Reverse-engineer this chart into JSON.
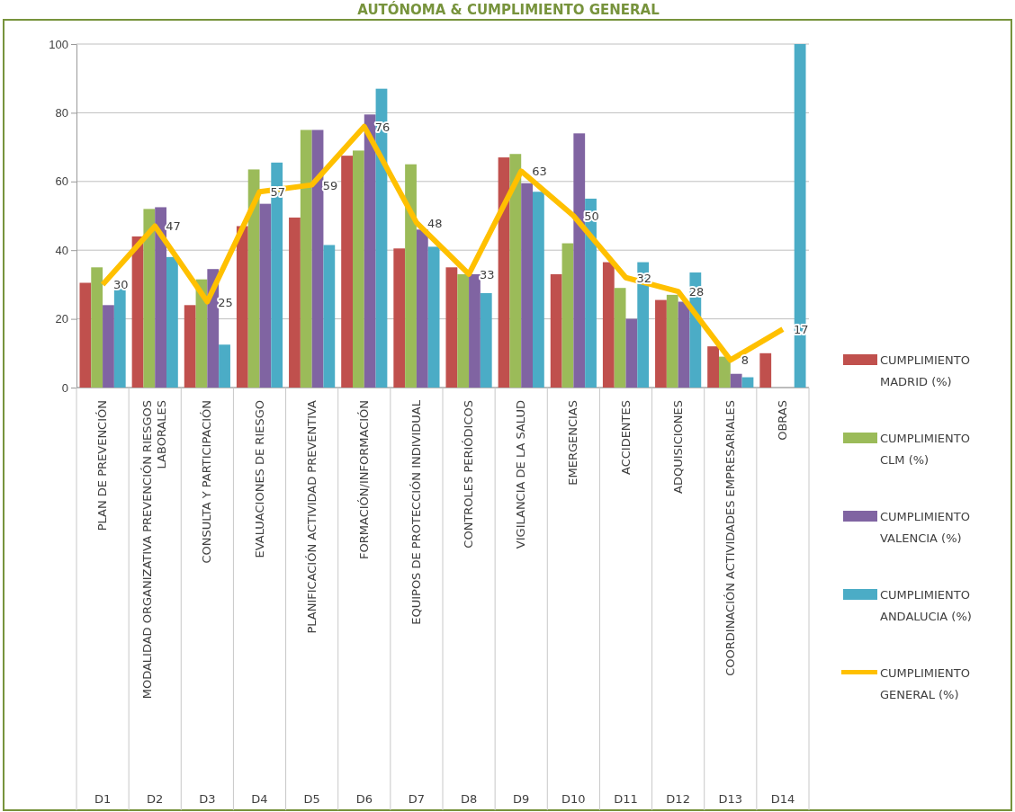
{
  "chart_data": {
    "type": "bar",
    "title": "AUTÓNOMA & CUMPLIMIENTO GENERAL",
    "categories": [
      "PLAN DE PREVENCIÓN",
      "MODALIDAD ORGANIZATIVA PREVENCIÓN RIESGOS LABORALES",
      "CONSULTA Y PARTICIPACIÓN",
      "EVALUACIONES DE RIESGO",
      "PLANIFICACIÓN ACTIVIDAD PREVENTIVA",
      "FORMACIÓN/INFORMACIÓN",
      "EQUIPOS DE PROTECCIÓN INDIVIDUAL",
      "CONTROLES PERIÓDICOS",
      "VIGILANCIA DE LA SALUD",
      "EMERGENCIAS",
      "ACCIDENTES",
      "ADQUISICIONES",
      "COORDINACIÓN ACTIVIDADES EMPRESARIALES",
      "OBRAS"
    ],
    "series": [
      {
        "name": "CUMPLIMIENTO MADRID (%)",
        "color": "#c0504d",
        "values": [
          30.5,
          44,
          24,
          47,
          49.5,
          67.5,
          40.5,
          35,
          67,
          33,
          36.5,
          25.5,
          12,
          10
        ]
      },
      {
        "name": "CUMPLIMIENTO CLM (%)",
        "color": "#9bbb59",
        "values": [
          35,
          52,
          31.5,
          63.5,
          75,
          69,
          65,
          33,
          68,
          42,
          29,
          27,
          9,
          null
        ]
      },
      {
        "name": "CUMPLIMIENTO VALENCIA (%)",
        "color": "#8064a2",
        "values": [
          24,
          52.5,
          34.5,
          53.5,
          75,
          79.5,
          46,
          33,
          59.5,
          74,
          20,
          25,
          4,
          null
        ]
      },
      {
        "name": "CUMPLIMIENTO ANDALUCIA (%)",
        "color": "#4bacc6",
        "values": [
          29,
          38,
          12.5,
          65.5,
          41.5,
          87,
          41,
          27.5,
          57,
          55,
          36.5,
          33.5,
          3,
          100
        ]
      },
      {
        "name": "CUMPLIMIENTO GENERAL (%)",
        "type": "line",
        "color": "#ffc000",
        "values": [
          30,
          47,
          25,
          57,
          59,
          76,
          48,
          33,
          63,
          50,
          32,
          28,
          8,
          17
        ],
        "value_labels": [
          "30",
          "47",
          "25",
          "57",
          "59",
          "76",
          "48",
          "33",
          "63",
          "50",
          "32",
          "28",
          "8",
          "17"
        ]
      }
    ],
    "ylim": [
      0,
      100
    ],
    "yticks": [
      0,
      20,
      40,
      60,
      80,
      100
    ],
    "grid": "y",
    "legend": "right",
    "marker": "none",
    "line_style": "solid",
    "annotations": [
      "D1",
      "D2",
      "D3",
      "D4",
      "D5",
      "D6",
      "D7",
      "D8",
      "D9",
      "D10",
      "D11",
      "D12",
      "D13",
      "D14"
    ]
  }
}
